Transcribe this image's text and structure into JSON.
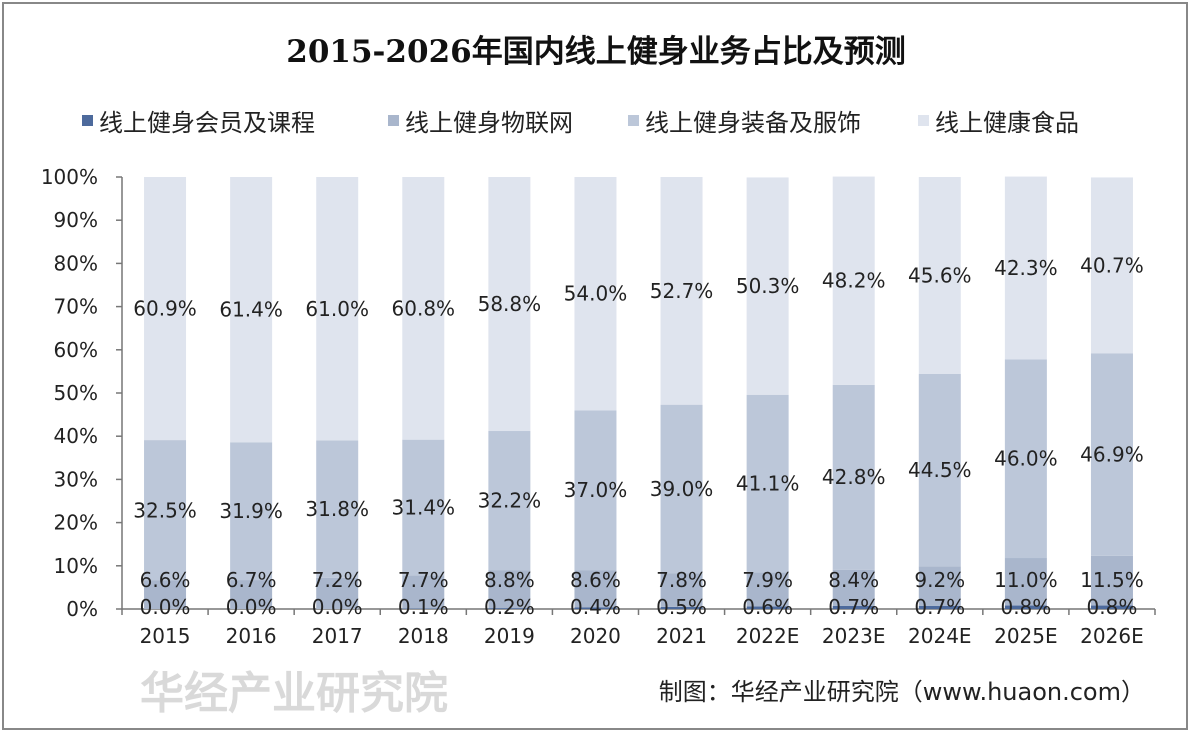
{
  "chart_data": {
    "type": "bar",
    "stacked": true,
    "title": "2015-2026年国内线上健身业务占比及预测",
    "categories": [
      "2015",
      "2016",
      "2017",
      "2018",
      "2019",
      "2020",
      "2021",
      "2022E",
      "2023E",
      "2024E",
      "2025E",
      "2026E"
    ],
    "series": [
      {
        "name": "线上健身会员及课程",
        "color": "#4d6a9c",
        "values": [
          0.0,
          0.0,
          0.0,
          0.1,
          0.2,
          0.4,
          0.5,
          0.6,
          0.7,
          0.7,
          0.8,
          0.8
        ]
      },
      {
        "name": "线上健身物联网",
        "color": "#a9b6cc",
        "values": [
          6.6,
          6.7,
          7.2,
          7.7,
          8.8,
          8.6,
          7.8,
          7.9,
          8.4,
          9.2,
          11.0,
          11.5
        ]
      },
      {
        "name": "线上健身装备及服饰",
        "color": "#bcc7d9",
        "values": [
          32.5,
          31.9,
          31.8,
          31.4,
          32.2,
          37.0,
          39.0,
          41.1,
          42.8,
          44.5,
          46.0,
          46.9
        ]
      },
      {
        "name": "线上健康食品",
        "color": "#dfe4ee",
        "values": [
          60.9,
          61.4,
          61.0,
          60.8,
          58.8,
          54.0,
          52.7,
          50.3,
          48.2,
          45.6,
          42.3,
          40.7
        ]
      }
    ],
    "yticks": [
      "0%",
      "10%",
      "20%",
      "30%",
      "40%",
      "50%",
      "60%",
      "70%",
      "80%",
      "90%",
      "100%"
    ],
    "ylim": [
      0,
      100
    ],
    "grid": false,
    "legend_position": "top",
    "xlabel": "",
    "ylabel": ""
  },
  "source": "制图：华经产业研究院（www.huaon.com）",
  "watermark": "华经产业研究院"
}
